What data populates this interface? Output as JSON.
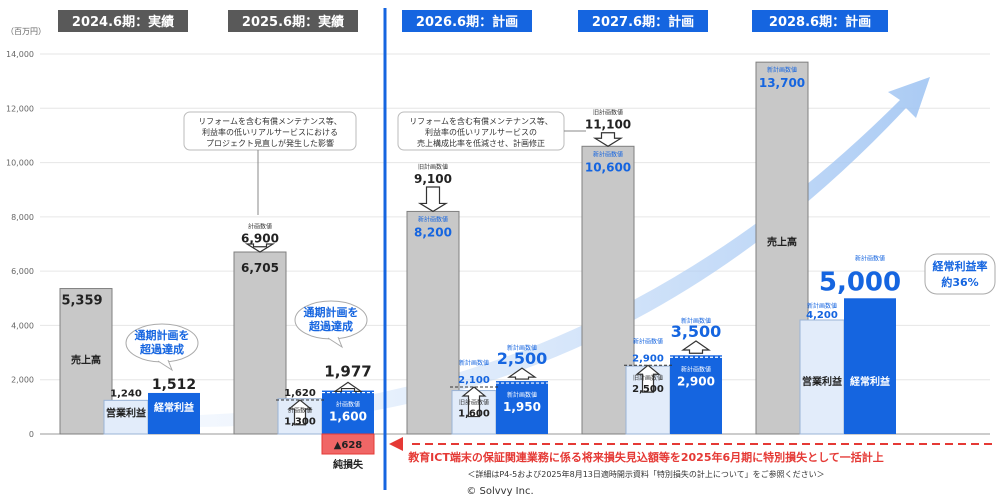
{
  "chart_data": {
    "type": "bar",
    "unit_label": "（百万円）",
    "ylim": [
      0,
      14000
    ],
    "yticks": [
      "0",
      "2,000",
      "4,000",
      "6,000",
      "8,000",
      "10,000",
      "12,000",
      "14,000"
    ],
    "ytick_values": [
      0,
      2000,
      4000,
      6000,
      8000,
      10000,
      12000,
      14000
    ],
    "periods": [
      {
        "label": "2024.6期：実績",
        "type": "actual"
      },
      {
        "label": "2025.6期：実績",
        "type": "actual"
      },
      {
        "label": "2026.6期：計画",
        "type": "plan"
      },
      {
        "label": "2027.6期：計画",
        "type": "plan"
      },
      {
        "label": "2028.6期：計画",
        "type": "plan"
      }
    ],
    "series": [
      {
        "name": "売上高",
        "values": [
          5359,
          6705,
          8200,
          10600,
          13700
        ],
        "labels": [
          "5,359",
          "6,705",
          "8,200",
          "10,600",
          "13,700"
        ],
        "color": "#c8c8c8"
      },
      {
        "name": "営業利益",
        "values": [
          1240,
          1300,
          1600,
          2500,
          4200
        ],
        "labels": [
          "1,240",
          "1,300",
          "1,600",
          "2,500",
          "4,200"
        ],
        "color": "#e2ecfa"
      },
      {
        "name": "経常利益",
        "values": [
          1512,
          1600,
          1950,
          2900,
          5000
        ],
        "labels": [
          "1,512",
          "1,600",
          "1,950",
          "2,900",
          "5,000"
        ],
        "color": "#1565e0"
      }
    ],
    "previous_plan": {
      "sales": [
        null,
        6900,
        9100,
        11100,
        null
      ],
      "sales_labels": [
        "",
        "6,900",
        "9,100",
        "11,100",
        ""
      ],
      "operating": [
        null,
        1620,
        2100,
        2900,
        null
      ],
      "operating_labels": [
        "",
        "1,620",
        "2,100",
        "2,900",
        ""
      ],
      "ordinary": [
        null,
        1977,
        2500,
        3500,
        null
      ],
      "ordinary_labels": [
        "",
        "1,977",
        "2,500",
        "3,500",
        ""
      ]
    },
    "extraordinary_loss": {
      "value": -628,
      "label": "▲628",
      "name": "純損失"
    },
    "sales_in_bar_labels": [
      "売上高",
      "",
      "",
      "",
      "売上高"
    ],
    "tag_plan": "計画数値",
    "tag_old_plan": "旧計画数値",
    "tag_new_plan": "新計画数値",
    "badge_exceed": [
      "通期計画を",
      "超過達成"
    ],
    "margin_badge": [
      "経常利益率",
      "約36%"
    ],
    "note_2025": [
      "リフォームを含む有償メンテナンス等、",
      "利益率の低いリアルサービスにおける",
      "プロジェクト見直しが発生した影響"
    ],
    "note_2026": [
      "リフォームを含む有償メンテナンス等、",
      "利益率の低いリアルサービスの",
      "売上構成比率を低減させ、計画修正"
    ],
    "red_note": "教育ICT端末の保証関連業務に係る将来損失見込額等を2025年6月期に特別損失として一括計上",
    "footnote": "＜詳細はP4-5および2025年8月13日適時開示資料「特別損失の計上について」をご参照ください＞",
    "copyright": "© Solvvy Inc.",
    "colors": {
      "header_actual": "#595959",
      "header_plan": "#1565e0",
      "divider": "#1565e0",
      "red": "#e53935",
      "arrow": "#bcd6f7"
    }
  }
}
